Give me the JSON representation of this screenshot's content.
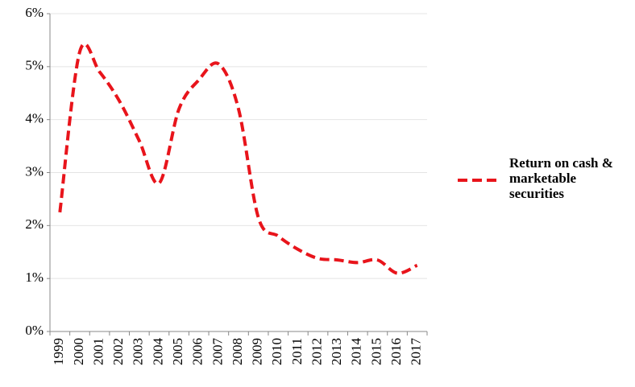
{
  "chart_data": {
    "type": "line",
    "categories": [
      "1999",
      "2000",
      "2001",
      "2002",
      "2003",
      "2004",
      "2005",
      "2006",
      "2007",
      "2008",
      "2009",
      "2010",
      "2011",
      "2012",
      "2013",
      "2014",
      "2015",
      "2016",
      "2017"
    ],
    "series": [
      {
        "name": "Return on cash & marketable securities",
        "color": "#e8141b",
        "values": [
          2.25,
          5.28,
          4.9,
          4.35,
          3.6,
          2.8,
          4.2,
          4.75,
          5.05,
          4.2,
          2.15,
          1.8,
          1.55,
          1.38,
          1.35,
          1.3,
          1.35,
          1.1,
          1.25
        ]
      }
    ],
    "ylim": [
      0,
      6
    ],
    "yticks": [
      {
        "value": 0,
        "label": "0%"
      },
      {
        "value": 1,
        "label": "1%"
      },
      {
        "value": 2,
        "label": "2%"
      },
      {
        "value": 3,
        "label": "3%"
      },
      {
        "value": 4,
        "label": "4%"
      },
      {
        "value": 5,
        "label": "5%"
      },
      {
        "value": 6,
        "label": "6%"
      }
    ],
    "grid": true,
    "dashed": true
  }
}
